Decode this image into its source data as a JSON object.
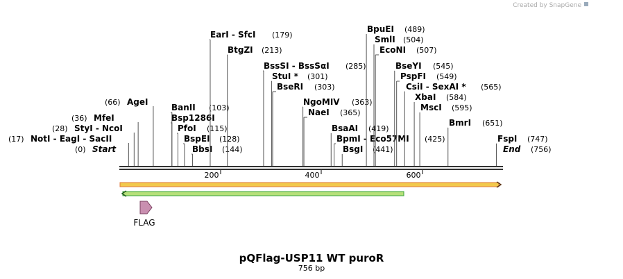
{
  "header": {
    "credit": "Created by SnapGene"
  },
  "sites": [
    {
      "name": "Start",
      "position": "(0)"
    },
    {
      "name": "NotI  -  EagI  -  SacII",
      "position": "(17)"
    },
    {
      "name": "StyI  -  NcoI",
      "position": "(28)"
    },
    {
      "name": "MfeI",
      "position": "(36)"
    },
    {
      "name": "AgeI",
      "position": "(66)"
    },
    {
      "name": "BanII",
      "position": "(103)"
    },
    {
      "name": "Bsp1286I"
    },
    {
      "name": "PfoI",
      "position": "(115)"
    },
    {
      "name": "BspEI",
      "position": "(128)"
    },
    {
      "name": "BbsI",
      "position": "(144)"
    },
    {
      "name": "EarI  -  SfcI",
      "position": "(179)"
    },
    {
      "name": "BtgZI",
      "position": "(213)"
    },
    {
      "name": "BssSI  -  BssSαI",
      "position": "(285)"
    },
    {
      "name": "StuI *",
      "position": "(301)"
    },
    {
      "name": "BseRI",
      "position": "(303)"
    },
    {
      "name": "NgoMIV",
      "position": "(363)"
    },
    {
      "name": "NaeI",
      "position": "(365)"
    },
    {
      "name": "BsaAI",
      "position": "(419)"
    },
    {
      "name": "BpmI  -  Eco57MI",
      "position": "(425)"
    },
    {
      "name": "BsgI",
      "position": "(441)"
    },
    {
      "name": "BpuEI",
      "position": "(489)"
    },
    {
      "name": "SmlI",
      "position": "(504)"
    },
    {
      "name": "EcoNI",
      "position": "(507)"
    },
    {
      "name": "BseYI",
      "position": "(545)"
    },
    {
      "name": "PspFI",
      "position": "(549)"
    },
    {
      "name": "CsiI  -  SexAI *",
      "position": "(565)"
    },
    {
      "name": "XbaI",
      "position": "(584)"
    },
    {
      "name": "MscI",
      "position": "(595)"
    },
    {
      "name": "BmrI",
      "position": "(651)"
    },
    {
      "name": "FspI",
      "position": "(747)"
    },
    {
      "name": "End",
      "position": "(756)"
    }
  ],
  "ruler": [
    "200",
    "400",
    "600"
  ],
  "features": [
    {
      "label": "FLAG"
    }
  ],
  "title": "pQFlag-USP11 WT puroR",
  "length": "756 bp"
}
